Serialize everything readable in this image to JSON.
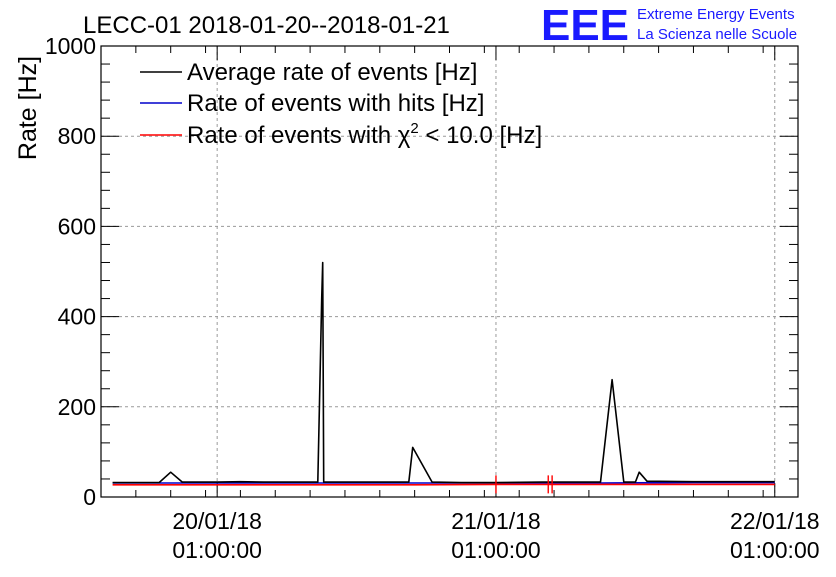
{
  "chart_data": {
    "type": "line",
    "title": "LECC-01 2018-01-20--2018-01-21",
    "ylabel": "Rate [Hz]",
    "xlabel": "",
    "ylim": [
      0,
      1000
    ],
    "xlim": [
      "2018-01-19 15:00:00",
      "2018-01-22 03:00:00"
    ],
    "x_tick_labels": [
      {
        "x": "2018-01-20 01:00:00",
        "line1": "20/01/18",
        "line2": "01:00:00"
      },
      {
        "x": "2018-01-21 01:00:00",
        "line1": "21/01/18",
        "line2": "01:00:00"
      },
      {
        "x": "2018-01-22 01:00:00",
        "line1": "22/01/18",
        "line2": "01:00:00"
      }
    ],
    "y_ticks": [
      "0",
      "200",
      "400",
      "600",
      "800",
      "1000"
    ],
    "grid": true,
    "legend_position": "top-left",
    "series": [
      {
        "name": "Average rate of events [Hz]",
        "color": "#000000",
        "points": [
          [
            "2018-01-19 16:00",
            32
          ],
          [
            "2018-01-19 20:00",
            32
          ],
          [
            "2018-01-19 21:00",
            55
          ],
          [
            "2018-01-19 22:00",
            33
          ],
          [
            "2018-01-20 01:00",
            33
          ],
          [
            "2018-01-20 03:00",
            34
          ],
          [
            "2018-01-20 05:00",
            33
          ],
          [
            "2018-01-20 09:40",
            33
          ],
          [
            "2018-01-20 10:00",
            440
          ],
          [
            "2018-01-20 10:05",
            520
          ],
          [
            "2018-01-20 10:10",
            33
          ],
          [
            "2018-01-20 15:00",
            33
          ],
          [
            "2018-01-20 17:30",
            33
          ],
          [
            "2018-01-20 17:50",
            110
          ],
          [
            "2018-01-20 19:30",
            33
          ],
          [
            "2018-01-20 22:00",
            32
          ],
          [
            "2018-01-21 01:00",
            32
          ],
          [
            "2018-01-21 05:00",
            33
          ],
          [
            "2018-01-21 09:00",
            33
          ],
          [
            "2018-01-21 10:00",
            33
          ],
          [
            "2018-01-21 11:00",
            260
          ],
          [
            "2018-01-21 12:00",
            33
          ],
          [
            "2018-01-21 13:00",
            33
          ],
          [
            "2018-01-21 13:20",
            55
          ],
          [
            "2018-01-21 14:00",
            35
          ],
          [
            "2018-01-21 18:00",
            34
          ],
          [
            "2018-01-22 01:00",
            34
          ]
        ]
      },
      {
        "name": "Rate of events with hits [Hz]",
        "color": "#0000ff",
        "points": [
          [
            "2018-01-19 16:00",
            31
          ],
          [
            "2018-01-20 01:00",
            31
          ],
          [
            "2018-01-20 10:00",
            31
          ],
          [
            "2018-01-20 18:00",
            31
          ],
          [
            "2018-01-21 01:00",
            31
          ],
          [
            "2018-01-21 10:00",
            31
          ],
          [
            "2018-01-21 18:00",
            32
          ],
          [
            "2018-01-22 01:00",
            32
          ]
        ]
      },
      {
        "name": "Rate of events with χ2 < 10.0 [Hz]",
        "color": "#ff0000",
        "points": [
          [
            "2018-01-19 16:00",
            27
          ],
          [
            "2018-01-20 01:00",
            27
          ],
          [
            "2018-01-20 10:00",
            27
          ],
          [
            "2018-01-20 18:00",
            27
          ],
          [
            "2018-01-21 01:00",
            28
          ],
          [
            "2018-01-21 05:30",
            28
          ],
          [
            "2018-01-21 10:00",
            28
          ],
          [
            "2018-01-21 18:00",
            28
          ],
          [
            "2018-01-22 01:00",
            28
          ]
        ]
      }
    ]
  },
  "legend": {
    "entry1": "Average rate of events [Hz]",
    "entry2": "Rate of events with hits [Hz]",
    "entry3_prefix": "Rate of events with ",
    "entry3_chi": "χ",
    "entry3_sup": "2",
    "entry3_suffix": " < 10.0 [Hz]"
  },
  "logo": {
    "mark": "EEE",
    "line1": "Extreme Energy Events",
    "line2": "La Scienza nelle Scuole",
    "color": "#1a1aff"
  }
}
